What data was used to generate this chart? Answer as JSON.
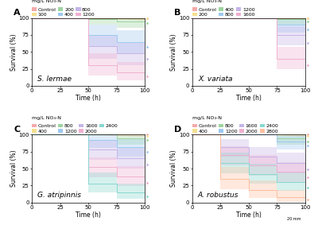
{
  "panels": [
    {
      "label": "A",
      "species": "S. lermae",
      "legend_label": "mg/L NO₃-N",
      "concentrations": [
        "Control",
        "100",
        "200",
        "400",
        "800",
        "1200"
      ],
      "colors": [
        "#f4aaaa",
        "#f5e090",
        "#9dd4a0",
        "#9ec8f0",
        "#c5b4e8",
        "#f0b0d0"
      ],
      "kaplan_meier": [
        {
          "time": [
            0,
            50,
            50,
            100,
            100
          ],
          "surv": [
            100,
            100,
            100,
            100,
            100
          ],
          "lower": [
            100,
            100,
            100,
            97,
            97
          ],
          "upper": [
            100,
            100,
            100,
            100,
            100
          ]
        },
        {
          "time": [
            0,
            50,
            50,
            100,
            100
          ],
          "surv": [
            100,
            100,
            100,
            100,
            100
          ],
          "lower": [
            100,
            100,
            100,
            97,
            97
          ],
          "upper": [
            100,
            100,
            100,
            100,
            100
          ]
        },
        {
          "time": [
            0,
            50,
            50,
            75,
            75,
            100,
            100
          ],
          "surv": [
            100,
            100,
            98,
            98,
            95,
            95,
            92
          ],
          "lower": [
            100,
            100,
            90,
            90,
            85,
            85,
            80
          ],
          "upper": [
            100,
            100,
            100,
            100,
            100,
            100,
            100
          ]
        },
        {
          "time": [
            0,
            50,
            50,
            75,
            75,
            100,
            100
          ],
          "surv": [
            100,
            100,
            75,
            75,
            65,
            65,
            55
          ],
          "lower": [
            100,
            100,
            58,
            58,
            48,
            48,
            38
          ],
          "upper": [
            100,
            100,
            90,
            90,
            82,
            82,
            72
          ]
        },
        {
          "time": [
            0,
            50,
            50,
            75,
            75,
            100,
            100
          ],
          "surv": [
            100,
            100,
            58,
            58,
            48,
            48,
            38
          ],
          "lower": [
            100,
            100,
            40,
            40,
            30,
            30,
            22
          ],
          "upper": [
            100,
            100,
            75,
            75,
            65,
            65,
            55
          ]
        },
        {
          "time": [
            0,
            50,
            50,
            75,
            75,
            100,
            100
          ],
          "surv": [
            100,
            100,
            30,
            30,
            20,
            20,
            12
          ],
          "lower": [
            100,
            100,
            15,
            15,
            8,
            8,
            3
          ],
          "upper": [
            100,
            100,
            48,
            48,
            35,
            35,
            25
          ]
        }
      ],
      "dots_y": [
        100,
        100,
        92,
        57,
        40,
        14
      ]
    },
    {
      "label": "B",
      "species": "X. variata",
      "legend_label": "mg/L NO₃-N",
      "concentrations": [
        "Control",
        "200",
        "400",
        "800",
        "1200",
        "1600"
      ],
      "colors": [
        "#f4aaaa",
        "#f5e090",
        "#9dd4a0",
        "#9ec8f0",
        "#c5b4e8",
        "#f0b0d0"
      ],
      "kaplan_meier": [
        {
          "time": [
            0,
            75,
            75,
            100,
            100
          ],
          "surv": [
            100,
            100,
            100,
            100,
            100
          ],
          "lower": [
            100,
            100,
            100,
            97,
            97
          ],
          "upper": [
            100,
            100,
            100,
            100,
            100
          ]
        },
        {
          "time": [
            0,
            75,
            75,
            100,
            100
          ],
          "surv": [
            100,
            100,
            100,
            100,
            100
          ],
          "lower": [
            100,
            100,
            100,
            97,
            97
          ],
          "upper": [
            100,
            100,
            100,
            100,
            100
          ]
        },
        {
          "time": [
            0,
            75,
            75,
            100,
            100
          ],
          "surv": [
            100,
            100,
            98,
            98,
            95
          ],
          "lower": [
            100,
            100,
            90,
            90,
            85
          ],
          "upper": [
            100,
            100,
            100,
            100,
            100
          ]
        },
        {
          "time": [
            0,
            75,
            75,
            100,
            100
          ],
          "surv": [
            100,
            100,
            90,
            90,
            82
          ],
          "lower": [
            100,
            100,
            78,
            78,
            68
          ],
          "upper": [
            100,
            100,
            98,
            98,
            93
          ]
        },
        {
          "time": [
            0,
            75,
            75,
            100,
            100
          ],
          "surv": [
            100,
            100,
            75,
            75,
            62
          ],
          "lower": [
            100,
            100,
            60,
            60,
            47
          ],
          "upper": [
            100,
            100,
            88,
            88,
            77
          ]
        },
        {
          "time": [
            0,
            75,
            75,
            100,
            100
          ],
          "surv": [
            100,
            100,
            40,
            40,
            28
          ],
          "lower": [
            100,
            100,
            25,
            25,
            15
          ],
          "upper": [
            100,
            100,
            57,
            57,
            44
          ]
        }
      ],
      "dots_y": [
        100,
        100,
        95,
        83,
        63,
        30
      ]
    },
    {
      "label": "C",
      "species": "G. atripinnis",
      "legend_label": "mg/L NO₃-N",
      "concentrations": [
        "Control",
        "400",
        "800",
        "1200",
        "1600",
        "2000",
        "2400"
      ],
      "colors": [
        "#f4aaaa",
        "#f5e090",
        "#9dd4a0",
        "#9ec8f0",
        "#c5b4e8",
        "#f0b0d0",
        "#88d8d0"
      ],
      "kaplan_meier": [
        {
          "time": [
            0,
            50,
            50,
            100,
            100
          ],
          "surv": [
            100,
            100,
            100,
            100,
            100
          ],
          "lower": [
            100,
            100,
            100,
            97,
            97
          ],
          "upper": [
            100,
            100,
            100,
            100,
            100
          ]
        },
        {
          "time": [
            0,
            50,
            50,
            100,
            100
          ],
          "surv": [
            100,
            100,
            100,
            100,
            98
          ],
          "lower": [
            100,
            100,
            100,
            100,
            90
          ],
          "upper": [
            100,
            100,
            100,
            100,
            100
          ]
        },
        {
          "time": [
            0,
            50,
            50,
            75,
            75,
            100,
            100
          ],
          "surv": [
            100,
            100,
            100,
            100,
            95,
            95,
            93
          ],
          "lower": [
            100,
            100,
            100,
            100,
            85,
            85,
            82
          ],
          "upper": [
            100,
            100,
            100,
            100,
            100,
            100,
            100
          ]
        },
        {
          "time": [
            0,
            50,
            50,
            75,
            75,
            100,
            100
          ],
          "surv": [
            100,
            100,
            92,
            92,
            82,
            82,
            75
          ],
          "lower": [
            100,
            100,
            80,
            80,
            68,
            68,
            60
          ],
          "upper": [
            100,
            100,
            100,
            100,
            93,
            93,
            88
          ]
        },
        {
          "time": [
            0,
            50,
            50,
            75,
            75,
            100,
            100
          ],
          "surv": [
            100,
            100,
            78,
            78,
            65,
            65,
            55
          ],
          "lower": [
            100,
            100,
            63,
            63,
            50,
            50,
            40
          ],
          "upper": [
            100,
            100,
            91,
            91,
            80,
            80,
            70
          ]
        },
        {
          "time": [
            0,
            50,
            50,
            75,
            75,
            100,
            100
          ],
          "surv": [
            100,
            100,
            52,
            52,
            38,
            38,
            28
          ],
          "lower": [
            100,
            100,
            37,
            37,
            24,
            24,
            15
          ],
          "upper": [
            100,
            100,
            67,
            67,
            53,
            53,
            43
          ]
        },
        {
          "time": [
            0,
            50,
            50,
            75,
            75,
            100,
            100
          ],
          "surv": [
            100,
            100,
            28,
            28,
            15,
            15,
            8
          ],
          "lower": [
            100,
            100,
            15,
            15,
            5,
            5,
            1
          ],
          "upper": [
            100,
            100,
            44,
            44,
            28,
            28,
            20
          ]
        }
      ],
      "dots_y": [
        100,
        98,
        92,
        75,
        56,
        29,
        9
      ]
    },
    {
      "label": "D",
      "species": "A. robustus",
      "legend_label": "mg/L NO₃-N",
      "concentrations": [
        "Control",
        "400",
        "800",
        "1200",
        "1600",
        "2000",
        "2400",
        "2800"
      ],
      "colors": [
        "#f4aaaa",
        "#f5e090",
        "#9dd4a0",
        "#9ec8f0",
        "#c5b4e8",
        "#f0b0d0",
        "#88d8d0",
        "#ffbe9f"
      ],
      "kaplan_meier": [
        {
          "time": [
            0,
            75,
            75,
            100,
            100
          ],
          "surv": [
            100,
            100,
            100,
            100,
            100
          ],
          "lower": [
            100,
            100,
            100,
            97,
            97
          ],
          "upper": [
            100,
            100,
            100,
            100,
            100
          ]
        },
        {
          "time": [
            0,
            75,
            75,
            100,
            100
          ],
          "surv": [
            100,
            100,
            100,
            100,
            98
          ],
          "lower": [
            100,
            100,
            100,
            100,
            90
          ],
          "upper": [
            100,
            100,
            100,
            100,
            100
          ]
        },
        {
          "time": [
            0,
            75,
            75,
            100,
            100
          ],
          "surv": [
            100,
            100,
            95,
            95,
            90
          ],
          "lower": [
            100,
            100,
            85,
            85,
            78
          ],
          "upper": [
            100,
            100,
            100,
            100,
            98
          ]
        },
        {
          "time": [
            0,
            75,
            75,
            100,
            100
          ],
          "surv": [
            100,
            100,
            90,
            90,
            83
          ],
          "lower": [
            100,
            100,
            78,
            78,
            70
          ],
          "upper": [
            100,
            100,
            98,
            98,
            93
          ]
        },
        {
          "time": [
            0,
            25,
            25,
            50,
            50,
            75,
            75,
            100,
            100
          ],
          "surv": [
            100,
            100,
            82,
            82,
            68,
            68,
            58,
            58,
            48
          ],
          "lower": [
            100,
            100,
            68,
            68,
            53,
            53,
            43,
            43,
            33
          ],
          "upper": [
            100,
            100,
            93,
            93,
            82,
            82,
            73,
            73,
            63
          ]
        },
        {
          "time": [
            0,
            25,
            25,
            50,
            50,
            75,
            75,
            100,
            100
          ],
          "surv": [
            100,
            100,
            70,
            70,
            55,
            55,
            45,
            45,
            35
          ],
          "lower": [
            100,
            100,
            55,
            55,
            40,
            40,
            30,
            30,
            22
          ],
          "upper": [
            100,
            100,
            83,
            83,
            70,
            70,
            60,
            60,
            50
          ]
        },
        {
          "time": [
            0,
            25,
            25,
            50,
            50,
            75,
            75,
            100,
            100
          ],
          "surv": [
            100,
            100,
            58,
            58,
            42,
            42,
            30,
            30,
            20
          ],
          "lower": [
            100,
            100,
            43,
            43,
            28,
            28,
            17,
            17,
            9
          ],
          "upper": [
            100,
            100,
            73,
            73,
            57,
            57,
            45,
            45,
            35
          ]
        },
        {
          "time": [
            0,
            25,
            25,
            50,
            50,
            75,
            75,
            100,
            100
          ],
          "surv": [
            100,
            100,
            35,
            35,
            18,
            18,
            8,
            8,
            2
          ],
          "lower": [
            100,
            100,
            20,
            20,
            7,
            7,
            1,
            1,
            0
          ],
          "upper": [
            100,
            100,
            52,
            52,
            32,
            32,
            18,
            18,
            9
          ]
        }
      ],
      "dots_y": [
        100,
        98,
        90,
        84,
        49,
        37,
        22,
        4
      ]
    }
  ],
  "xlabel": "Time (h)",
  "ylabel": "Survival (%)",
  "xlim": [
    0,
    100
  ],
  "ylim": [
    0,
    100
  ],
  "xticks": [
    0,
    25,
    50,
    75,
    100
  ],
  "yticks": [
    0,
    25,
    50,
    75,
    100
  ],
  "bg_color": "#ffffff",
  "font_size_label": 5.5,
  "font_size_tick": 5,
  "font_size_legend": 4.5,
  "font_size_species": 6.5,
  "font_size_panel": 8,
  "alpha_band": 0.35,
  "line_width": 0.7
}
